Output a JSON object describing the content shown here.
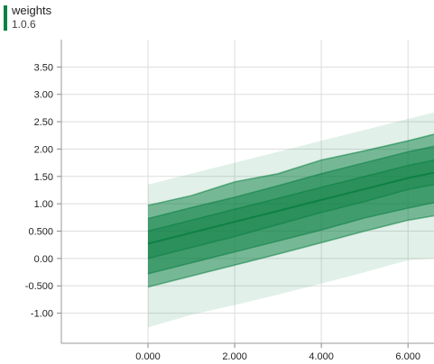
{
  "header": {
    "name": "weights",
    "version": "1.0.6",
    "accent_color": "#0b8043"
  },
  "chart_data": {
    "type": "area",
    "title": "",
    "xlabel": "",
    "ylabel": "",
    "xlim": [
      -2.0,
      6.6
    ],
    "ylim": [
      -1.55,
      4.0
    ],
    "grid": true,
    "x_ticks": [
      "0.000",
      "2.000",
      "4.000",
      "6.000"
    ],
    "y_ticks": [
      "3.50",
      "3.00",
      "2.50",
      "2.00",
      "1.50",
      "1.00",
      "0.500",
      "0.00",
      "-0.500",
      "-1.00"
    ],
    "x": [
      0,
      1,
      2,
      3,
      4,
      5,
      6,
      6.6
    ],
    "bands": [
      {
        "lower": [
          -1.26,
          -1.03,
          -0.85,
          -0.66,
          -0.46,
          -0.25,
          -0.03,
          0.0
        ],
        "upper": [
          1.35,
          1.55,
          1.75,
          1.95,
          2.15,
          2.35,
          2.55,
          2.67
        ],
        "opacity": 0.12
      },
      {
        "lower": [
          -0.52,
          -0.32,
          -0.12,
          0.08,
          0.29,
          0.5,
          0.7,
          0.78
        ],
        "upper": [
          0.97,
          1.15,
          1.4,
          1.55,
          1.8,
          1.97,
          2.15,
          2.27
        ],
        "opacity": 0.5
      },
      {
        "lower": [
          -0.28,
          -0.08,
          0.12,
          0.32,
          0.52,
          0.74,
          0.92,
          1.02
        ],
        "upper": [
          0.73,
          0.93,
          1.12,
          1.33,
          1.55,
          1.75,
          1.95,
          2.05
        ],
        "opacity": 0.5
      },
      {
        "lower": [
          0.0,
          0.2,
          0.4,
          0.62,
          0.84,
          1.04,
          1.26,
          1.35
        ],
        "upper": [
          0.5,
          0.7,
          0.9,
          1.1,
          1.3,
          1.5,
          1.7,
          1.8
        ],
        "opacity": 0.4
      }
    ],
    "median": [
      0.27,
      0.47,
      0.67,
      0.87,
      1.07,
      1.27,
      1.47,
      1.57
    ],
    "series_color": "#0b8043"
  }
}
